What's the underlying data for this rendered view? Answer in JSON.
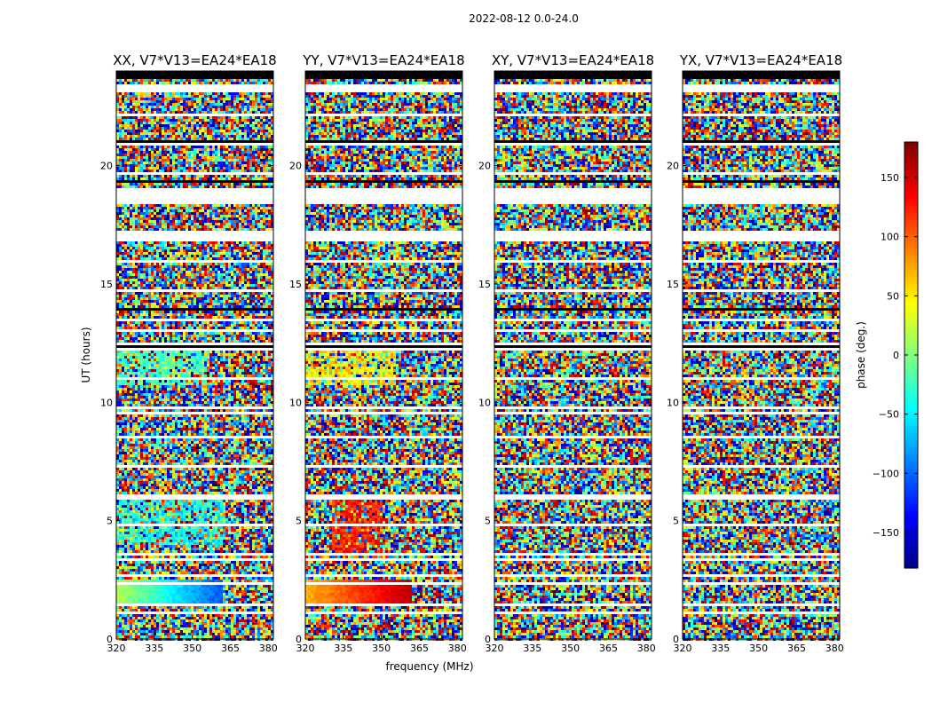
{
  "suptitle": "2022-08-12 0.0-24.0",
  "chart_data": {
    "type": "heatmap",
    "title": "2022-08-12 0.0-24.0",
    "xlabel": "frequency (MHz)",
    "ylabel": "UT (hours)",
    "xlim": [
      320,
      382
    ],
    "ylim": [
      0,
      24
    ],
    "xticks": [
      "320",
      "335",
      "350",
      "365",
      "380"
    ],
    "yticks": [
      "0",
      "5",
      "10",
      "15",
      "20"
    ],
    "panels": [
      {
        "title": "XX, V7*V13=EA24*EA18"
      },
      {
        "title": "YY, V7*V13=EA24*EA18"
      },
      {
        "title": "XY, V7*V13=EA24*EA18"
      },
      {
        "title": "YX, V7*V13=EA24*EA18"
      }
    ],
    "colorbar": {
      "label": "phase (deg.)",
      "range": [
        -180,
        180
      ],
      "ticks": [
        "150",
        "100",
        "50",
        "0",
        "−50",
        "−100",
        "−150"
      ],
      "tick_values": [
        150,
        100,
        50,
        0,
        -50,
        -100,
        -150
      ],
      "colormap": "jet"
    },
    "flagged_gaps_hours": [
      [
        23.55,
        23.75
      ],
      [
        19.0,
        18.6
      ],
      [
        12.6,
        12.9
      ],
      [
        9.55,
        9.7
      ],
      [
        6.05,
        6.12
      ],
      [
        3.55,
        3.65
      ],
      [
        2.9,
        3.0
      ],
      [
        1.45,
        1.55
      ],
      [
        0.7,
        0.78
      ]
    ]
  }
}
